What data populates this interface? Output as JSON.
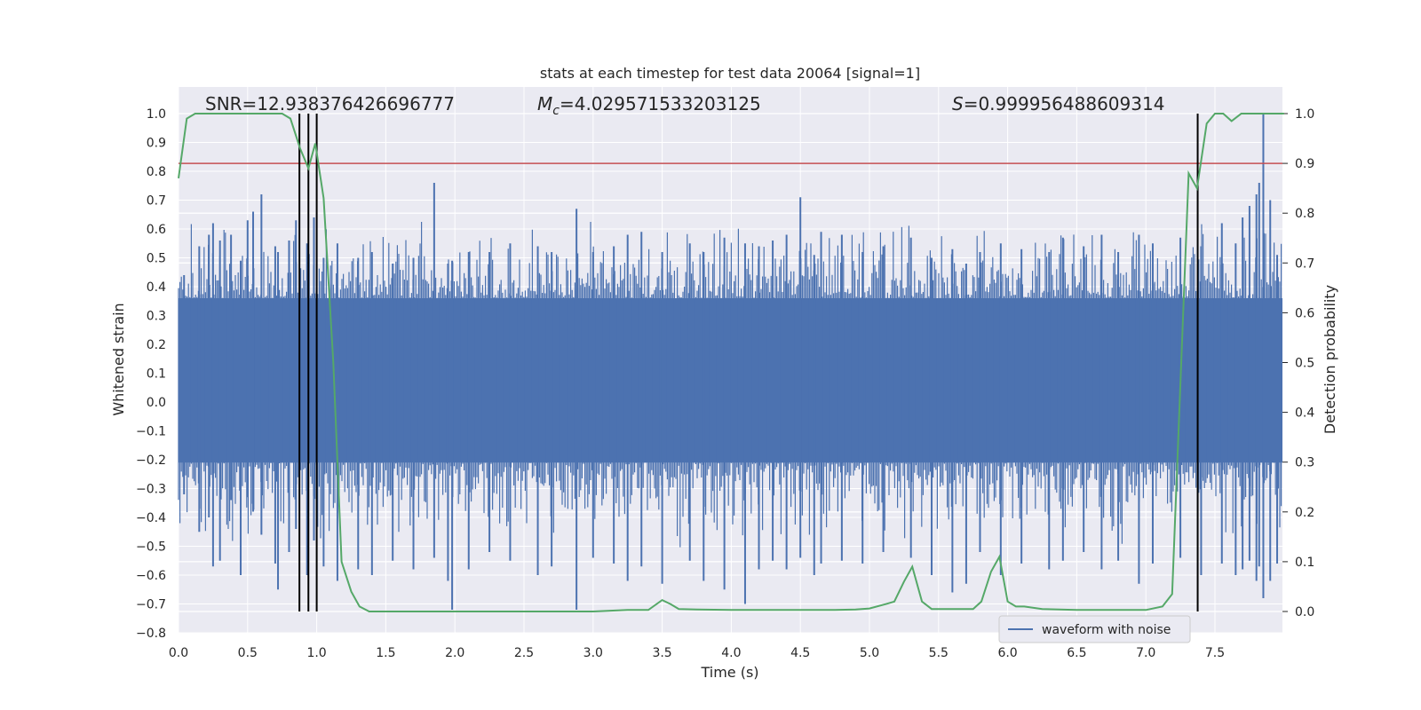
{
  "chart_data": {
    "type": "line",
    "title": "stats at each timestep for test data 20064 [signal=1]",
    "xlabel": "Time (s)",
    "ylabel_left": "Whitened strain",
    "ylabel_right": "Detection probability",
    "xlim": [
      0,
      8
    ],
    "ylim_left": [
      -0.8,
      1.08
    ],
    "ylim_right": [
      -0.05,
      1.04
    ],
    "xticks": [
      "0.0",
      "0.5",
      "1.0",
      "1.5",
      "2.0",
      "2.5",
      "3.0",
      "3.5",
      "4.0",
      "4.5",
      "5.0",
      "5.5",
      "6.0",
      "6.5",
      "7.0",
      "7.5"
    ],
    "yticks_left": [
      "1.0",
      "0.9",
      "0.8",
      "0.7",
      "0.6",
      "0.5",
      "0.4",
      "0.3",
      "0.2",
      "0.1",
      "0.0",
      "−0.1",
      "−0.2",
      "−0.3",
      "−0.4",
      "−0.5",
      "−0.6",
      "−0.7",
      "−0.8"
    ],
    "yticks_right": [
      "1.0",
      "0.9",
      "0.8",
      "0.7",
      "0.6",
      "0.5",
      "0.4",
      "0.3",
      "0.2",
      "0.1",
      "0.0"
    ],
    "grid": true,
    "legend": {
      "position": "lower-right",
      "entries": [
        "waveform with noise"
      ]
    },
    "annotations": {
      "snr": "SNR=12.938376426696777",
      "mc_symbol": "M",
      "mc_sub": "c",
      "mc_value": "=4.029571533203125",
      "s_symbol": "S",
      "s_value": "=0.999956488609314"
    },
    "threshold": {
      "axis": "right",
      "value": 0.9,
      "color": "#c44e52"
    },
    "vertical_lines": [
      0.875,
      0.94,
      1.0,
      7.375
    ],
    "waveform": {
      "name": "waveform with noise",
      "color": "#4c72b0",
      "dense_band": [
        -0.21,
        0.36
      ],
      "peaks": [
        [
          0.04,
          0.44,
          -0.32
        ],
        [
          0.15,
          0.54,
          -0.45
        ],
        [
          0.22,
          0.58,
          -0.4
        ],
        [
          0.25,
          0.62,
          -0.57
        ],
        [
          0.3,
          0.56,
          -0.55
        ],
        [
          0.38,
          0.58,
          -0.34
        ],
        [
          0.45,
          0.49,
          -0.6
        ],
        [
          0.5,
          0.63,
          -0.33
        ],
        [
          0.54,
          0.66,
          -0.38
        ],
        [
          0.6,
          0.72,
          -0.46
        ],
        [
          0.7,
          0.54,
          -0.56
        ],
        [
          0.72,
          0.52,
          -0.65
        ],
        [
          0.8,
          0.56,
          -0.52
        ],
        [
          0.85,
          0.63,
          -0.44
        ],
        [
          0.93,
          0.55,
          -0.6
        ],
        [
          0.98,
          0.64,
          -0.48
        ],
        [
          1.05,
          0.5,
          -0.57
        ],
        [
          1.15,
          0.55,
          -0.62
        ],
        [
          1.3,
          0.5,
          -0.58
        ],
        [
          1.4,
          0.52,
          -0.6
        ],
        [
          1.55,
          0.48,
          -0.55
        ],
        [
          1.7,
          0.5,
          -0.58
        ],
        [
          1.85,
          0.76,
          -0.54
        ],
        [
          1.95,
          0.48,
          -0.62
        ],
        [
          1.98,
          0.49,
          -0.72
        ],
        [
          2.1,
          0.52,
          -0.58
        ],
        [
          2.25,
          0.52,
          -0.52
        ],
        [
          2.4,
          0.55,
          -0.55
        ],
        [
          2.6,
          0.54,
          -0.6
        ],
        [
          2.7,
          0.52,
          -0.57
        ],
        [
          2.88,
          0.67,
          -0.72
        ],
        [
          3.0,
          0.52,
          -0.54
        ],
        [
          3.15,
          0.54,
          -0.56
        ],
        [
          3.25,
          0.58,
          -0.62
        ],
        [
          3.35,
          0.59,
          -0.57
        ],
        [
          3.5,
          0.52,
          -0.63
        ],
        [
          3.7,
          0.55,
          -0.55
        ],
        [
          3.8,
          0.52,
          -0.62
        ],
        [
          3.95,
          0.57,
          -0.65
        ],
        [
          4.1,
          0.55,
          -0.7
        ],
        [
          4.2,
          0.54,
          -0.58
        ],
        [
          4.3,
          0.56,
          -0.55
        ],
        [
          4.4,
          0.58,
          -0.58
        ],
        [
          4.5,
          0.71,
          -0.54
        ],
        [
          4.6,
          0.51,
          -0.6
        ],
        [
          4.65,
          0.59,
          -0.56
        ],
        [
          4.8,
          0.58,
          -0.55
        ],
        [
          4.95,
          0.52,
          -0.56
        ],
        [
          5.1,
          0.54,
          -0.52
        ],
        [
          5.3,
          0.57,
          -0.54
        ],
        [
          5.45,
          0.5,
          -0.6
        ],
        [
          5.6,
          0.53,
          -0.66
        ],
        [
          5.7,
          0.48,
          -0.63
        ],
        [
          5.8,
          0.52,
          -0.52
        ],
        [
          5.95,
          0.55,
          -0.6
        ],
        [
          6.1,
          0.53,
          -0.56
        ],
        [
          6.3,
          0.52,
          -0.58
        ],
        [
          6.4,
          0.57,
          -0.55
        ],
        [
          6.55,
          0.54,
          -0.52
        ],
        [
          6.68,
          0.58,
          -0.58
        ],
        [
          6.8,
          0.52,
          -0.55
        ],
        [
          6.95,
          0.58,
          -0.63
        ],
        [
          7.05,
          0.55,
          -0.56
        ],
        [
          7.25,
          0.57,
          -0.54
        ],
        [
          7.4,
          0.54,
          -0.6
        ],
        [
          7.55,
          0.62,
          -0.56
        ],
        [
          7.65,
          0.55,
          -0.6
        ],
        [
          7.7,
          0.64,
          -0.58
        ],
        [
          7.75,
          0.68,
          -0.55
        ],
        [
          7.8,
          0.72,
          -0.62
        ],
        [
          7.82,
          0.76,
          -0.57
        ],
        [
          7.85,
          1.0,
          -0.68
        ],
        [
          7.9,
          0.7,
          -0.62
        ],
        [
          7.95,
          0.51,
          -0.56
        ]
      ]
    },
    "probability": {
      "name": "detection probability",
      "color": "#55a868",
      "x": [
        0.0,
        0.06,
        0.12,
        0.2,
        0.5,
        0.75,
        0.81,
        0.88,
        0.94,
        0.99,
        1.05,
        1.12,
        1.18,
        1.25,
        1.31,
        1.38,
        1.5,
        2.0,
        3.0,
        3.25,
        3.4,
        3.5,
        3.56,
        3.62,
        3.75,
        4.0,
        4.25,
        4.5,
        4.75,
        4.9,
        5.0,
        5.12,
        5.18,
        5.25,
        5.31,
        5.38,
        5.45,
        5.6,
        5.75,
        5.81,
        5.88,
        5.94,
        6.0,
        6.06,
        6.12,
        6.25,
        6.5,
        6.75,
        7.0,
        7.12,
        7.19,
        7.31,
        7.37,
        7.44,
        7.5,
        7.56,
        7.62,
        7.69,
        7.75,
        8.0
      ],
      "y": [
        0.87,
        0.99,
        1.0,
        1.0,
        1.0,
        1.0,
        0.99,
        0.93,
        0.89,
        0.94,
        0.83,
        0.5,
        0.1,
        0.04,
        0.01,
        0.0,
        0.0,
        0.0,
        0.0,
        0.003,
        0.003,
        0.023,
        0.015,
        0.005,
        0.004,
        0.003,
        0.003,
        0.003,
        0.003,
        0.004,
        0.006,
        0.015,
        0.02,
        0.06,
        0.09,
        0.02,
        0.005,
        0.005,
        0.005,
        0.02,
        0.08,
        0.11,
        0.02,
        0.01,
        0.01,
        0.005,
        0.003,
        0.003,
        0.003,
        0.01,
        0.035,
        0.88,
        0.85,
        0.98,
        1.0,
        1.0,
        0.985,
        1.0,
        1.0,
        1.0
      ]
    }
  }
}
